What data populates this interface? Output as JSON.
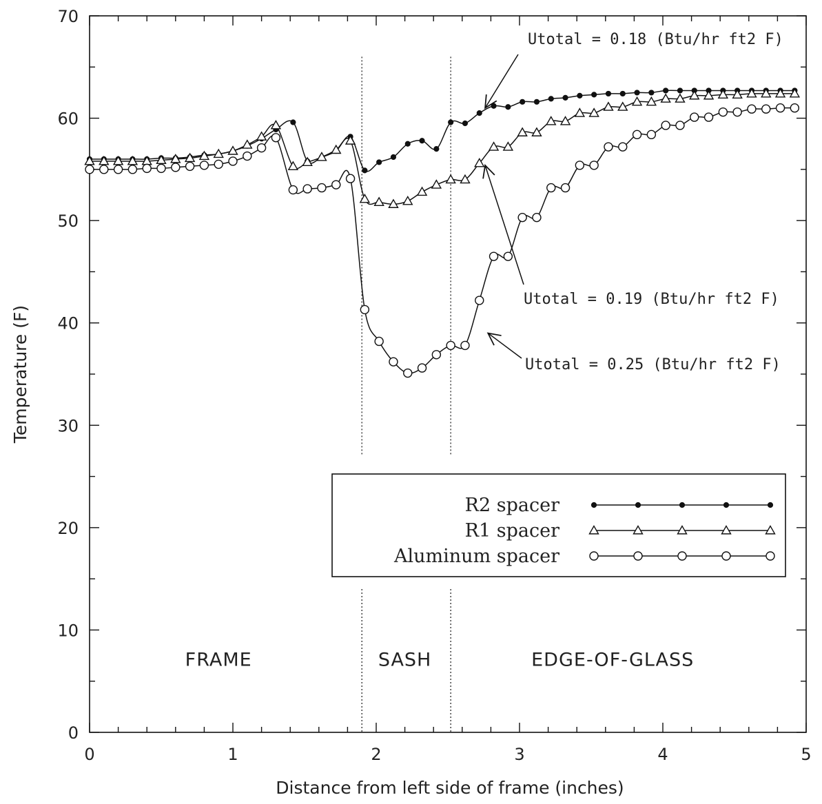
{
  "chart_data": {
    "type": "line",
    "title": "",
    "xlabel": "Distance from left side of frame (inches)",
    "ylabel": "Temperature (F)",
    "xlim": [
      0,
      5
    ],
    "ylim": [
      0,
      70
    ],
    "x_ticks": [
      0,
      1,
      2,
      3,
      4,
      5
    ],
    "y_ticks": [
      0,
      10,
      20,
      30,
      40,
      50,
      60,
      70
    ],
    "grid": false,
    "legend_position": "lower-right",
    "regions": [
      {
        "label": "FRAME",
        "x": 0.9
      },
      {
        "label": "SASH",
        "x": 2.2
      },
      {
        "label": "EDGE-OF-GLASS",
        "x": 3.65
      }
    ],
    "region_boundaries": [
      1.9,
      2.52
    ],
    "series": [
      {
        "name": "R2 spacer",
        "marker": "filled-circle",
        "x": [
          0,
          0.1,
          0.2,
          0.3,
          0.4,
          0.5,
          0.6,
          0.7,
          0.8,
          0.9,
          1.0,
          1.1,
          1.2,
          1.3,
          1.42,
          1.52,
          1.62,
          1.72,
          1.82,
          1.92,
          2.02,
          2.12,
          2.22,
          2.32,
          2.42,
          2.52,
          2.62,
          2.72,
          2.82,
          2.92,
          3.02,
          3.12,
          3.22,
          3.32,
          3.42,
          3.52,
          3.62,
          3.72,
          3.82,
          3.92,
          4.02,
          4.12,
          4.22,
          4.32,
          4.42,
          4.52,
          4.62,
          4.72,
          4.82,
          4.92
        ],
        "values": [
          56.0,
          56.0,
          56.0,
          56.0,
          56.0,
          56.1,
          56.1,
          56.2,
          56.4,
          56.5,
          56.8,
          57.3,
          58.0,
          58.9,
          59.6,
          55.8,
          56.2,
          56.8,
          58.2,
          54.9,
          55.7,
          56.2,
          57.5,
          57.8,
          57.0,
          59.6,
          59.5,
          60.5,
          61.2,
          61.1,
          61.6,
          61.6,
          61.9,
          62.0,
          62.2,
          62.3,
          62.4,
          62.4,
          62.5,
          62.5,
          62.7,
          62.7,
          62.7,
          62.7,
          62.7,
          62.7,
          62.7,
          62.7,
          62.7,
          62.7
        ]
      },
      {
        "name": "R1 spacer",
        "marker": "open-triangle",
        "x": [
          0,
          0.1,
          0.2,
          0.3,
          0.4,
          0.5,
          0.6,
          0.7,
          0.8,
          0.9,
          1.0,
          1.1,
          1.2,
          1.3,
          1.42,
          1.52,
          1.62,
          1.72,
          1.82,
          1.92,
          2.02,
          2.12,
          2.22,
          2.32,
          2.42,
          2.52,
          2.62,
          2.72,
          2.82,
          2.92,
          3.02,
          3.12,
          3.22,
          3.32,
          3.42,
          3.52,
          3.62,
          3.72,
          3.82,
          3.92,
          4.02,
          4.12,
          4.22,
          4.32,
          4.42,
          4.52,
          4.62,
          4.72,
          4.82,
          4.92
        ],
        "values": [
          55.8,
          55.8,
          55.8,
          55.8,
          55.8,
          55.9,
          56.0,
          56.1,
          56.3,
          56.5,
          56.8,
          57.4,
          58.2,
          59.3,
          55.3,
          55.7,
          56.2,
          56.9,
          57.8,
          52.1,
          51.8,
          51.6,
          51.9,
          52.8,
          53.5,
          54.0,
          54.0,
          55.6,
          57.2,
          57.2,
          58.6,
          58.6,
          59.7,
          59.7,
          60.5,
          60.5,
          61.1,
          61.1,
          61.6,
          61.6,
          61.9,
          61.9,
          62.2,
          62.2,
          62.3,
          62.3,
          62.4,
          62.4,
          62.4,
          62.4
        ]
      },
      {
        "name": "Aluminum spacer",
        "marker": "open-circle",
        "x": [
          0,
          0.1,
          0.2,
          0.3,
          0.4,
          0.5,
          0.6,
          0.7,
          0.8,
          0.9,
          1.0,
          1.1,
          1.2,
          1.3,
          1.42,
          1.52,
          1.62,
          1.72,
          1.82,
          1.92,
          2.02,
          2.12,
          2.22,
          2.32,
          2.42,
          2.52,
          2.62,
          2.72,
          2.82,
          2.92,
          3.02,
          3.12,
          3.22,
          3.32,
          3.42,
          3.52,
          3.62,
          3.72,
          3.82,
          3.92,
          4.02,
          4.12,
          4.22,
          4.32,
          4.42,
          4.52,
          4.62,
          4.72,
          4.82,
          4.92
        ],
        "values": [
          55.0,
          55.0,
          55.0,
          55.0,
          55.1,
          55.1,
          55.2,
          55.3,
          55.4,
          55.5,
          55.8,
          56.3,
          57.1,
          58.1,
          53.0,
          53.1,
          53.2,
          53.5,
          54.1,
          41.3,
          38.2,
          36.2,
          35.1,
          35.6,
          36.9,
          37.8,
          37.8,
          42.2,
          46.5,
          46.5,
          50.3,
          50.3,
          53.2,
          53.2,
          55.4,
          55.4,
          57.2,
          57.2,
          58.4,
          58.4,
          59.3,
          59.3,
          60.1,
          60.1,
          60.6,
          60.6,
          60.9,
          60.9,
          61.0,
          61.0
        ]
      }
    ],
    "annotations": [
      {
        "text": "Utotal = 0.18 (Btu/hr ft2 F)",
        "series": "R2 spacer",
        "arrow_to": [
          2.76,
          61.0
        ]
      },
      {
        "text": "Utotal = 0.19 (Btu/hr ft2 F)",
        "series": "R1 spacer",
        "arrow_to": [
          2.76,
          55.4
        ]
      },
      {
        "text": "Utotal = 0.25 (Btu/hr ft2 F)",
        "series": "Aluminum spacer",
        "arrow_to": [
          2.78,
          39.0
        ]
      }
    ]
  }
}
